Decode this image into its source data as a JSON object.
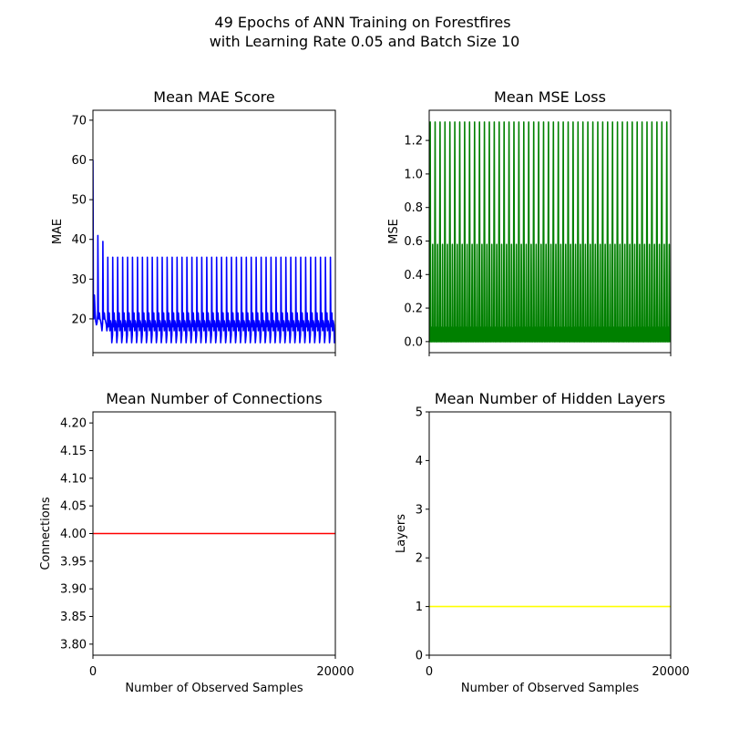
{
  "figure": {
    "title_line1": "49 Epochs of ANN Training on Forestfires",
    "title_line2": "with Learning Rate 0.05 and Batch Size 10"
  },
  "chart_data": [
    {
      "type": "line",
      "title": "Mean MAE Score",
      "xlabel": "",
      "ylabel": "MAE",
      "xlim": [
        0,
        20000
      ],
      "ylim": [
        11.5,
        72.5
      ],
      "yticks": [
        20,
        30,
        40,
        50,
        60,
        70
      ],
      "xticks": [],
      "grid": false,
      "color": "#0000ff",
      "epochs": 49,
      "per_epoch": {
        "start_first": 60,
        "start_second": 41,
        "start_settled": 35.5,
        "min_first": 19,
        "min_settled": 14,
        "inner_peak_first": 26,
        "inner_peak_settled": 21.5,
        "plateau": 18.5
      }
    },
    {
      "type": "line",
      "title": "Mean MSE Loss",
      "xlabel": "",
      "ylabel": "MSE",
      "xlim": [
        0,
        20000
      ],
      "ylim": [
        -0.066,
        1.38
      ],
      "yticks": [
        0.0,
        0.2,
        0.4,
        0.6,
        0.8,
        1.0,
        1.2
      ],
      "xticks": [],
      "grid": false,
      "color": "#008000",
      "epochs": 49,
      "per_epoch": {
        "spike_peak": 1.31,
        "second_peak": 0.58,
        "minor_peak": 0.085,
        "floor": 0.0
      }
    },
    {
      "type": "line",
      "title": "Mean Number of Connections",
      "xlabel": "Number of Observed Samples",
      "ylabel": "Connections",
      "xlim": [
        0,
        20000
      ],
      "ylim": [
        3.78,
        4.22
      ],
      "yticks": [
        3.8,
        3.85,
        3.9,
        3.95,
        4.0,
        4.05,
        4.1,
        4.15,
        4.2
      ],
      "xticks": [
        0,
        20000
      ],
      "grid": false,
      "color": "#ff0000",
      "x": [
        0,
        20000
      ],
      "y": [
        4.0,
        4.0
      ]
    },
    {
      "type": "line",
      "title": "Mean Number of Hidden Layers",
      "xlabel": "Number of Observed Samples",
      "ylabel": "Layers",
      "xlim": [
        0,
        20000
      ],
      "ylim": [
        0,
        5
      ],
      "yticks": [
        0,
        1,
        2,
        3,
        4,
        5
      ],
      "xticks": [
        0,
        20000
      ],
      "grid": false,
      "color": "#ffff00",
      "x": [
        0,
        20000
      ],
      "y": [
        1,
        1
      ]
    }
  ]
}
